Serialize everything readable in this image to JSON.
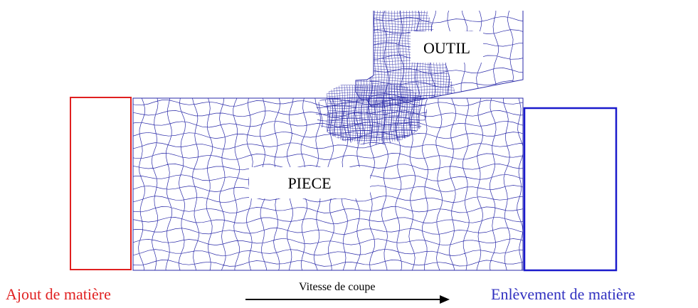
{
  "labels": {
    "tool": "OUTIL",
    "workpiece": "PIECE",
    "left": "Ajout de matière",
    "speed": "Vitesse de coupe",
    "right": "Enlèvement de matière"
  }
}
